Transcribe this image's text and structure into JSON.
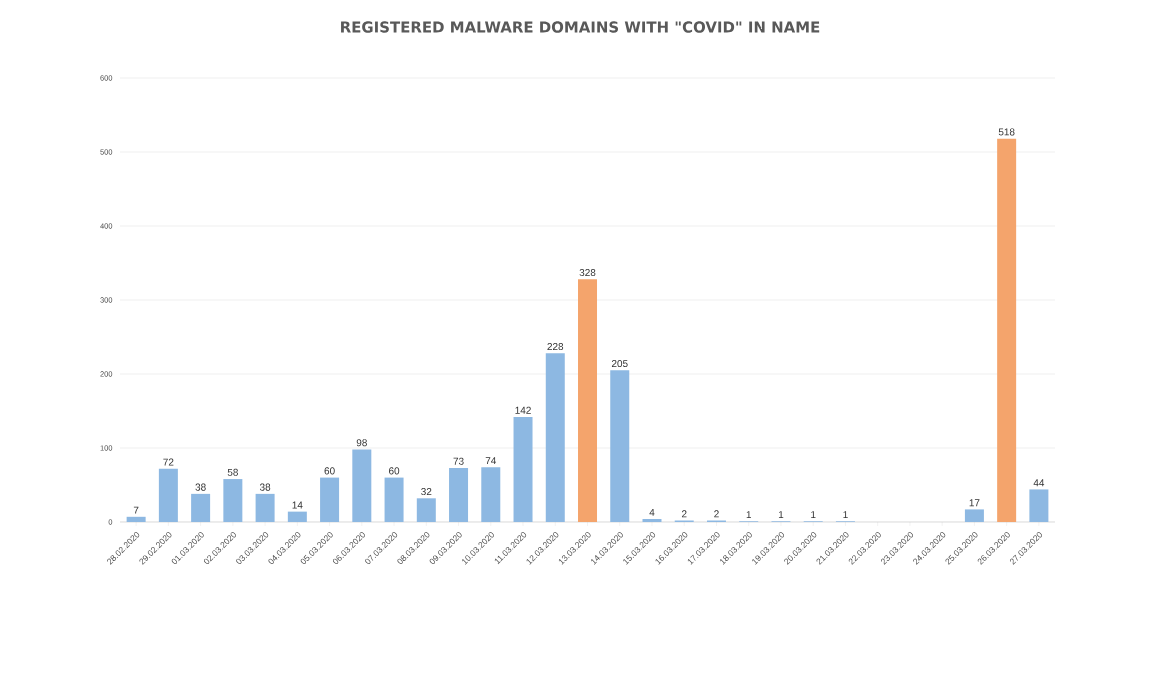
{
  "chart_data": {
    "type": "bar",
    "title": "REGISTERED MALWARE DOMAINS WITH \"COVID\" IN NAME",
    "categories": [
      "28.02.2020",
      "29.02.2020",
      "01.03.2020",
      "02.03.2020",
      "03.03.2020",
      "04.03.2020",
      "05.03.2020",
      "06.03.2020",
      "07.03.2020",
      "08.03.2020",
      "09.03.2020",
      "10.03.2020",
      "11.03.2020",
      "12.03.2020",
      "13.03.2020",
      "14.03.2020",
      "15.03.2020",
      "16.03.2020",
      "17.03.2020",
      "18.03.2020",
      "19.03.2020",
      "20.03.2020",
      "21.03.2020",
      "22.03.2020",
      "23.03.2020",
      "24.03.2020",
      "25.03.2020",
      "26.03.2020",
      "27.03.2020"
    ],
    "values": [
      7,
      72,
      38,
      58,
      38,
      14,
      60,
      98,
      60,
      32,
      73,
      74,
      142,
      228,
      328,
      205,
      4,
      2,
      2,
      1,
      1,
      1,
      1,
      null,
      null,
      null,
      17,
      518,
      44
    ],
    "colors": [
      "#8db8e2",
      "#8db8e2",
      "#8db8e2",
      "#8db8e2",
      "#8db8e2",
      "#8db8e2",
      "#8db8e2",
      "#8db8e2",
      "#8db8e2",
      "#8db8e2",
      "#8db8e2",
      "#8db8e2",
      "#8db8e2",
      "#8db8e2",
      "#f4a46c",
      "#8db8e2",
      "#8db8e2",
      "#8db8e2",
      "#8db8e2",
      "#8db8e2",
      "#8db8e2",
      "#8db8e2",
      "#8db8e2",
      "#8db8e2",
      "#8db8e2",
      "#8db8e2",
      "#8db8e2",
      "#f4a46c",
      "#8db8e2"
    ],
    "ylim": [
      0,
      600
    ],
    "yticks": [
      0,
      100,
      200,
      300,
      400,
      500,
      600
    ],
    "grid": "y",
    "data_labels": true
  }
}
